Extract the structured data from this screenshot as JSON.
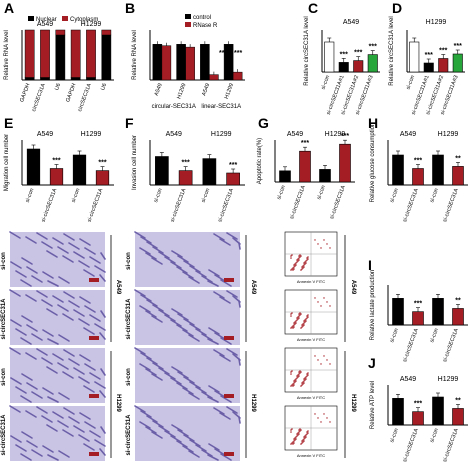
{
  "colors": {
    "red": "#a51d24",
    "black": "#000000",
    "green": "#27a63c",
    "white": "#ffffff",
    "purple": "#6b5fa8"
  },
  "chart_data": [
    {
      "panel": "A",
      "type": "bar",
      "ylabel": "Relative RNA level",
      "legend": [
        "Nuclear",
        "Cytoplasm"
      ],
      "group_labels": [
        "A549",
        "H1299"
      ],
      "categories": [
        "GAPDH",
        "circSEC31A",
        "U6",
        "GAPDH",
        "circSEC31A",
        "U6"
      ],
      "series": [
        {
          "name": "Nuclear",
          "values": [
            5,
            5,
            90,
            5,
            5,
            90
          ]
        },
        {
          "name": "Cytoplasm",
          "values": [
            95,
            95,
            10,
            95,
            95,
            10
          ]
        }
      ],
      "ylim": [
        0,
        100
      ]
    },
    {
      "panel": "B",
      "type": "bar",
      "ylabel": "Relative RNA level",
      "legend": [
        "control",
        "RNase R"
      ],
      "categories": [
        "A549",
        "H1299",
        "A549",
        "H1299"
      ],
      "group_labels": [
        "circular-SEC31A",
        "linear-SEC31A"
      ],
      "series": [
        {
          "name": "control",
          "values": [
            1.0,
            1.0,
            1.0,
            1.0
          ]
        },
        {
          "name": "RNase R",
          "values": [
            0.96,
            0.92,
            0.15,
            0.22
          ]
        }
      ],
      "annotations": [
        "***",
        "***"
      ],
      "ylim": [
        0,
        1.4
      ]
    },
    {
      "panel": "C",
      "type": "bar",
      "title": "A549",
      "ylabel": "Relative circSEC31A level",
      "categories": [
        "si-con",
        "si-circSEC31A#1",
        "si-circSEC31A#2",
        "si-circSEC31A#3"
      ],
      "values": [
        1.0,
        0.32,
        0.38,
        0.58
      ],
      "colors": [
        "white",
        "black",
        "red",
        "green"
      ],
      "annotations": [
        "",
        "***",
        "***",
        "***"
      ],
      "ylim": [
        0,
        1.4
      ]
    },
    {
      "panel": "D",
      "type": "bar",
      "title": "H1299",
      "ylabel": "Relative circSEC31A level",
      "categories": [
        "si-con",
        "si-circSEC31A#1",
        "si-circSEC31A#2",
        "si-circSEC31A#3"
      ],
      "values": [
        1.0,
        0.3,
        0.45,
        0.6
      ],
      "colors": [
        "white",
        "black",
        "red",
        "green"
      ],
      "annotations": [
        "",
        "***",
        "***",
        "***"
      ],
      "ylim": [
        0,
        1.4
      ]
    },
    {
      "panel": "E",
      "type": "bar",
      "ylabel": "Migration cell number",
      "group_labels": [
        "A549",
        "H1299"
      ],
      "categories": [
        "si-con",
        "si-circSEC31A",
        "si-con",
        "si-circSEC31A"
      ],
      "values": [
        120,
        55,
        100,
        48
      ],
      "annotations": [
        "",
        "***",
        "",
        "***"
      ],
      "ylim": [
        0,
        150
      ]
    },
    {
      "panel": "F",
      "type": "bar",
      "ylabel": "Invasion cell number",
      "group_labels": [
        "A549",
        "H1299"
      ],
      "categories": [
        "si-con",
        "si-circSEC31A",
        "si-con",
        "si-circSEC31A"
      ],
      "values": [
        95,
        48,
        88,
        40
      ],
      "annotations": [
        "",
        "***",
        "",
        "***"
      ],
      "ylim": [
        0,
        150
      ]
    },
    {
      "panel": "G",
      "type": "bar",
      "ylabel": "Apoptotic rate(%)",
      "group_labels": [
        "A549",
        "H1299"
      ],
      "categories": [
        "si-con",
        "si-circSEC31A",
        "si-con",
        "si-circSEC31A"
      ],
      "values": [
        8,
        22,
        9,
        27
      ],
      "annotations": [
        "",
        "***",
        "",
        "***"
      ],
      "ylim": [
        0,
        30
      ]
    },
    {
      "panel": "H",
      "type": "bar",
      "ylabel": "Relative glucose consumption",
      "group_labels": [
        "A549",
        "H1299"
      ],
      "categories": [
        "si-con",
        "si-circSEC31A",
        "si-con",
        "si-circSEC31A"
      ],
      "values": [
        1.0,
        0.55,
        1.0,
        0.62
      ],
      "annotations": [
        "",
        "***",
        "",
        "**"
      ],
      "ylim": [
        0,
        1.5
      ]
    },
    {
      "panel": "I",
      "type": "bar",
      "ylabel": "Relative lactate production",
      "group_labels": [
        "A549",
        "H1299"
      ],
      "categories": [
        "si-con",
        "si-circSEC31A",
        "si-con",
        "si-circSEC31A"
      ],
      "values": [
        1.0,
        0.5,
        1.0,
        0.62
      ],
      "annotations": [
        "",
        "***",
        "",
        "**"
      ],
      "ylim": [
        0,
        1.5
      ]
    },
    {
      "panel": "J",
      "type": "bar",
      "ylabel": "Relative ATP level",
      "group_labels": [
        "A549",
        "H1299"
      ],
      "categories": [
        "si-con",
        "si-circSEC31A",
        "si-con",
        "si-circSEC31A"
      ],
      "values": [
        1.0,
        0.5,
        1.05,
        0.62
      ],
      "annotations": [
        "",
        "***",
        "",
        "**"
      ],
      "ylim": [
        0,
        1.5
      ]
    }
  ],
  "images": {
    "migration_rows": [
      "si-con",
      "si-circSEC31A",
      "si-con",
      "si-circSEC31A"
    ],
    "migration_groups": [
      "A549",
      "H1299"
    ],
    "invasion_rows": [
      "si-con",
      "si-circSEC31A",
      "si-con",
      "si-circSEC31A"
    ],
    "invasion_groups": [
      "A549",
      "H1299"
    ],
    "flow_groups": [
      "A549",
      "H1299"
    ],
    "flow_xlabel": "Annexin V FITC",
    "flow_ylabel": "PI"
  }
}
